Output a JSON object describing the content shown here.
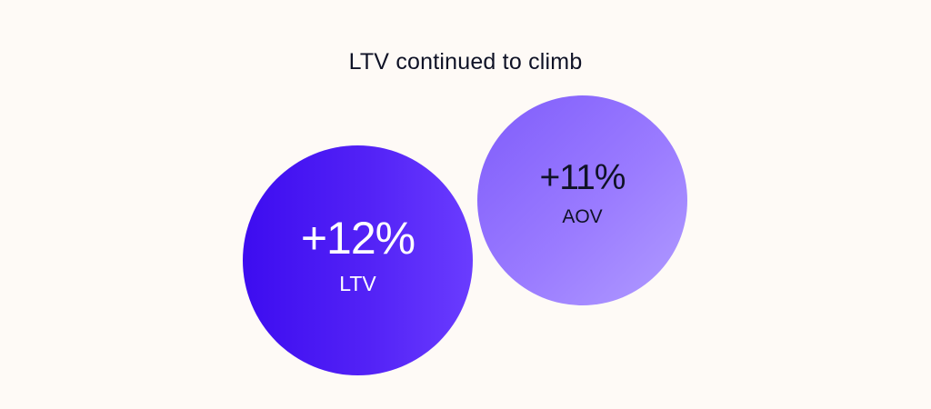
{
  "title": "LTV continued to climb",
  "bubbles": [
    {
      "value": "+12%",
      "label": "LTV",
      "color_start": "#3d0cf0",
      "color_end": "#6a3cff",
      "text_color": "#ffffff"
    },
    {
      "value": "+11%",
      "label": "AOV",
      "color_start": "#7f5cfb",
      "color_end": "#b19cff",
      "text_color": "#0f1226"
    }
  ],
  "chart_data": {
    "type": "bubble",
    "title": "LTV continued to climb",
    "categories": [
      "LTV",
      "AOV"
    ],
    "values": [
      12,
      11
    ],
    "value_labels": [
      "+12%",
      "+11%"
    ],
    "unit": "%",
    "xlabel": "",
    "ylabel": "",
    "legend": "none",
    "grid": false
  }
}
